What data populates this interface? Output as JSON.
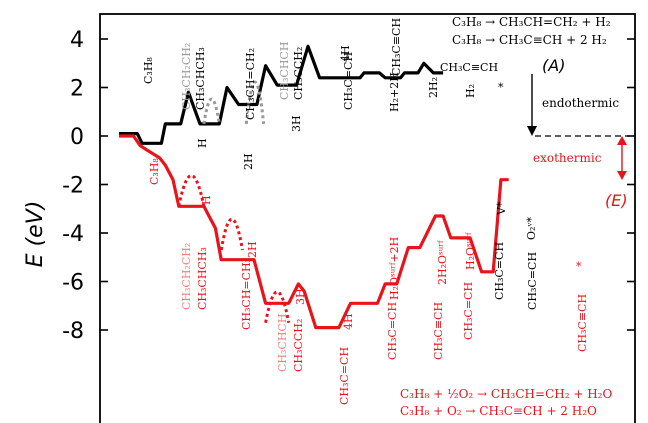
{
  "chart_data": {
    "type": "line",
    "ylabel": "E (eV)",
    "yticks": [
      "4",
      "2",
      "0",
      "-2",
      "-4",
      "-6",
      "-8"
    ],
    "ylim": [
      -11.4,
      5.2
    ],
    "xlim": [
      0,
      535
    ],
    "colors": {
      "A": "#000000",
      "A_alt": "#999999",
      "E": "#e8141c",
      "E_alt": "#f08080",
      "axis": "#000000"
    },
    "reactions_A": [
      "C₃H₈ → CH₃CH=CH₂ + H₂",
      "C₃H₈ → CH₃C≡CH + 2 H₂"
    ],
    "reactions_E": [
      "C₃H₈ + ½O₂ → CH₃CH=CH₂ + H₂O",
      "C₃H₈ + O₂ → CH₃C≡CH + 2 H₂O"
    ],
    "annotations": {
      "A": "(A)",
      "E": "(E)",
      "endothermic": "endothermic",
      "exothermic": "exothermic"
    },
    "series": [
      {
        "name": "(A)",
        "color": "#000000",
        "x": [
          0,
          19,
          24,
          44,
          48,
          64,
          72,
          84,
          88,
          104,
          112,
          124,
          128,
          143,
          152,
          164,
          168,
          184,
          196,
          208,
          212,
          228,
          240,
          250,
          254,
          270,
          276,
          292,
          296,
          310,
          316,
          326,
          330,
          336
        ],
        "y": [
          0.1,
          0.1,
          -0.3,
          -0.3,
          0.5,
          0.5,
          1.8,
          0.5,
          0.5,
          0.5,
          2.0,
          1.3,
          1.3,
          1.3,
          2.9,
          2.1,
          2.1,
          2.1,
          3.7,
          2.4,
          2.4,
          2.4,
          2.4,
          2.4,
          2.6,
          2.6,
          2.4,
          2.4,
          2.6,
          2.6,
          3.0,
          2.6,
          2.6,
          2.6
        ]
      },
      {
        "name": "(E)",
        "color": "#e8141c",
        "x": [
          0,
          15,
          22,
          30,
          42,
          48,
          56,
          62,
          76,
          88,
          92,
          100,
          106,
          114,
          128,
          140,
          152,
          160,
          176,
          186,
          192,
          204,
          216,
          228,
          240,
          252,
          264,
          268,
          276,
          288,
          300,
          312,
          328,
          336,
          344,
          352,
          364,
          376,
          388,
          396,
          404
        ],
        "y": [
          0,
          0,
          -0.4,
          -0.6,
          -0.9,
          -1.2,
          -1.8,
          -2.9,
          -2.9,
          -2.9,
          -3.2,
          -3.8,
          -5.1,
          -5.1,
          -5.1,
          -5.1,
          -6.9,
          -6.9,
          -6.9,
          -6.1,
          -6.4,
          -7.9,
          -7.9,
          -7.9,
          -6.9,
          -6.9,
          -6.9,
          -6.9,
          -6.1,
          -6.1,
          -4.6,
          -4.6,
          -3.3,
          -3.3,
          -4.2,
          -4.2,
          -4.2,
          -5.6,
          -5.6,
          -1.8,
          -1.8
        ]
      }
    ],
    "barrier_estimates": {
      "A_dotted": [
        [
          88,
          104,
          1.8
        ],
        [
          132,
          150,
          3.2
        ]
      ],
      "E_dotted": [
        [
          62,
          88,
          -1.1
        ],
        [
          106,
          128,
          -2.9
        ],
        [
          152,
          176,
          -5.9
        ]
      ]
    }
  },
  "labels_A": [
    "C₃H₈",
    "H",
    "2H",
    "3H",
    "4H",
    "H₂+2H",
    "2H₂",
    "H₂",
    "*"
  ],
  "labels_A_species": [
    "CH₃CH₂CH₂",
    "CH₃CHCH₃",
    "CH₃CH=CH₂",
    "CH₃CHCH",
    "CH₃CCH₂",
    "CH₃C=CH",
    "CH₃C≡CH",
    "CH₃C≡CH"
  ],
  "labels_E": [
    "C₃H₈",
    "H",
    "2H",
    "3H",
    "4H",
    "H₂Oˢᵘʳᶠ+2H",
    "2H₂Oˢᵘʳᶠ",
    "H₂Oˢᵘʳᶠ",
    "V*",
    "O₂ᵛ*",
    "*"
  ],
  "labels_E_species": [
    "CH₃CH₂CH₂",
    "CH₃CHCH₃",
    "CH₃CH=CH₂",
    "CH₃CHCH",
    "CH₃CCH₂",
    "CH₃C=CH",
    "CH₃C=CH",
    "CH₃C≡CH",
    "CH₃C=CH",
    "CH₃C=CH",
    "CH₃C=CH",
    "CH₃C≡CH"
  ]
}
